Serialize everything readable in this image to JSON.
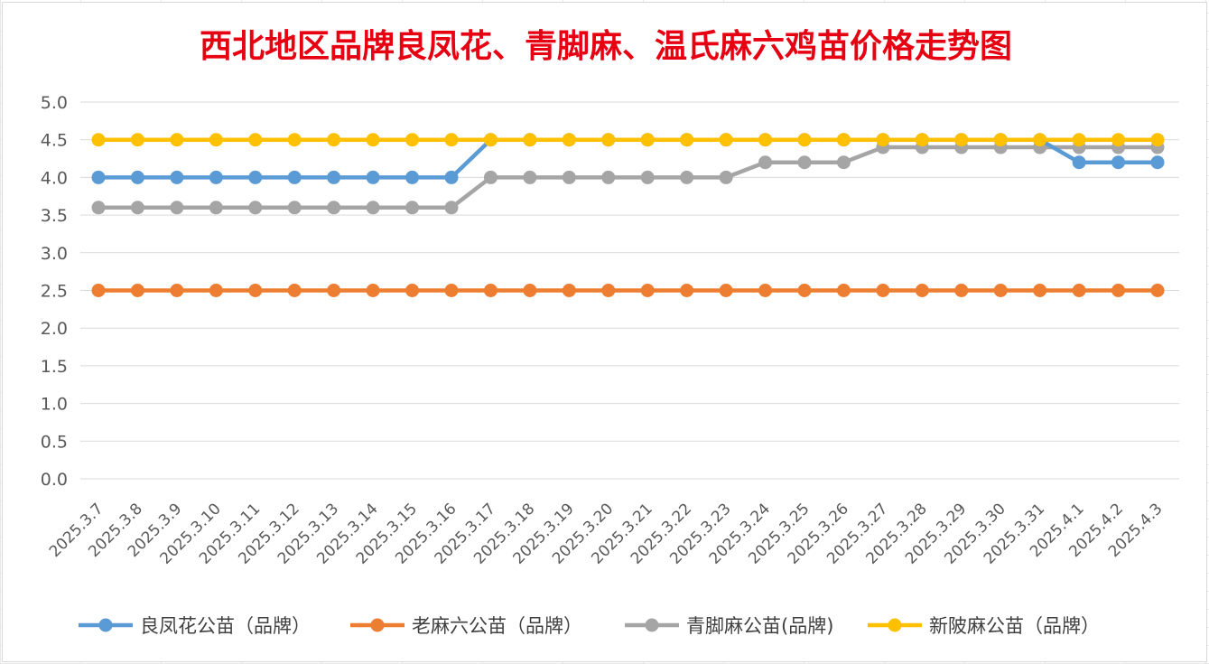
{
  "chart_data": {
    "type": "line",
    "title": "西北地区品牌良凤花、青脚麻、温氏麻六鸡苗价格走势图",
    "xlabel": "",
    "ylabel": "",
    "ylim": [
      0,
      5
    ],
    "yticks": [
      "0.0",
      "0.5",
      "1.0",
      "1.5",
      "2.0",
      "2.5",
      "3.0",
      "3.5",
      "4.0",
      "4.5",
      "5.0"
    ],
    "grid": "horizontal",
    "legend_position": "bottom",
    "categories": [
      "2025.3.7",
      "2025.3.8",
      "2025.3.9",
      "2025.3.10",
      "2025.3.11",
      "2025.3.12",
      "2025.3.13",
      "2025.3.14",
      "2025.3.15",
      "2025.3.16",
      "2025.3.17",
      "2025.3.18",
      "2025.3.19",
      "2025.3.20",
      "2025.3.21",
      "2025.3.22",
      "2025.3.23",
      "2025.3.24",
      "2025.3.25",
      "2025.3.26",
      "2025.3.27",
      "2025.3.28",
      "2025.3.29",
      "2025.3.30",
      "2025.3.31",
      "2025.4.1",
      "2025.4.2",
      "2025.4.3"
    ],
    "series": [
      {
        "name": "良凤花公苗（品牌）",
        "color": "#5b9bd5",
        "values": [
          4.0,
          4.0,
          4.0,
          4.0,
          4.0,
          4.0,
          4.0,
          4.0,
          4.0,
          4.0,
          4.5,
          4.5,
          4.5,
          4.5,
          4.5,
          4.5,
          4.5,
          4.5,
          4.5,
          4.5,
          4.5,
          4.5,
          4.5,
          4.5,
          4.5,
          4.2,
          4.2,
          4.2
        ]
      },
      {
        "name": "老麻六公苗（品牌）",
        "color": "#ed7d31",
        "values": [
          2.5,
          2.5,
          2.5,
          2.5,
          2.5,
          2.5,
          2.5,
          2.5,
          2.5,
          2.5,
          2.5,
          2.5,
          2.5,
          2.5,
          2.5,
          2.5,
          2.5,
          2.5,
          2.5,
          2.5,
          2.5,
          2.5,
          2.5,
          2.5,
          2.5,
          2.5,
          2.5,
          2.5
        ]
      },
      {
        "name": "青脚麻公苗(品牌)",
        "color": "#a5a5a5",
        "values": [
          3.6,
          3.6,
          3.6,
          3.6,
          3.6,
          3.6,
          3.6,
          3.6,
          3.6,
          3.6,
          4.0,
          4.0,
          4.0,
          4.0,
          4.0,
          4.0,
          4.0,
          4.2,
          4.2,
          4.2,
          4.4,
          4.4,
          4.4,
          4.4,
          4.4,
          4.4,
          4.4,
          4.4
        ]
      },
      {
        "name": "新陂麻公苗（品牌）",
        "color": "#ffc000",
        "values": [
          4.5,
          4.5,
          4.5,
          4.5,
          4.5,
          4.5,
          4.5,
          4.5,
          4.5,
          4.5,
          4.5,
          4.5,
          4.5,
          4.5,
          4.5,
          4.5,
          4.5,
          4.5,
          4.5,
          4.5,
          4.5,
          4.5,
          4.5,
          4.5,
          4.5,
          4.5,
          4.5,
          4.5
        ]
      }
    ]
  }
}
